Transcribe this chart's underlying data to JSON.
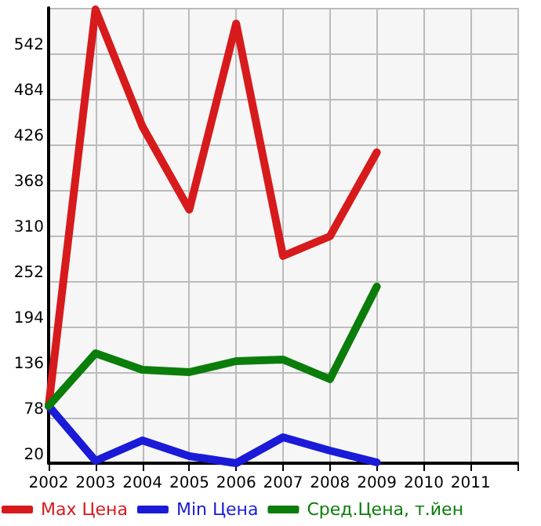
{
  "chart_data": {
    "type": "line",
    "x": [
      2002,
      2003,
      2004,
      2005,
      2006,
      2007,
      2008,
      2009
    ],
    "series": [
      {
        "name": "Max Цена",
        "color": "#d71a1c",
        "values": [
          93,
          598,
          449,
          343,
          580,
          284,
          309,
          416
        ]
      },
      {
        "name": "Min Цена",
        "color": "#1a1ad8",
        "values": [
          93,
          23,
          49,
          29,
          20,
          53,
          36,
          21
        ]
      },
      {
        "name": "Сред.Цена, т.йен",
        "color": "#0a7d0a",
        "values": [
          93,
          160,
          139,
          136,
          150,
          152,
          127,
          245
        ]
      }
    ],
    "xlim": [
      2002,
      2012
    ],
    "xticks": [
      2002,
      2003,
      2004,
      2005,
      2006,
      2007,
      2008,
      2009,
      2010,
      2011,
      {
        "value": 2012,
        "label": null
      }
    ],
    "ylim": [
      20,
      600
    ],
    "yticks": [
      20,
      78,
      136,
      194,
      252,
      310,
      368,
      426,
      484,
      542,
      {
        "value": 600,
        "label": null
      }
    ],
    "grid": true,
    "legend": "bottom",
    "marker": "none",
    "line_style": "solid"
  }
}
